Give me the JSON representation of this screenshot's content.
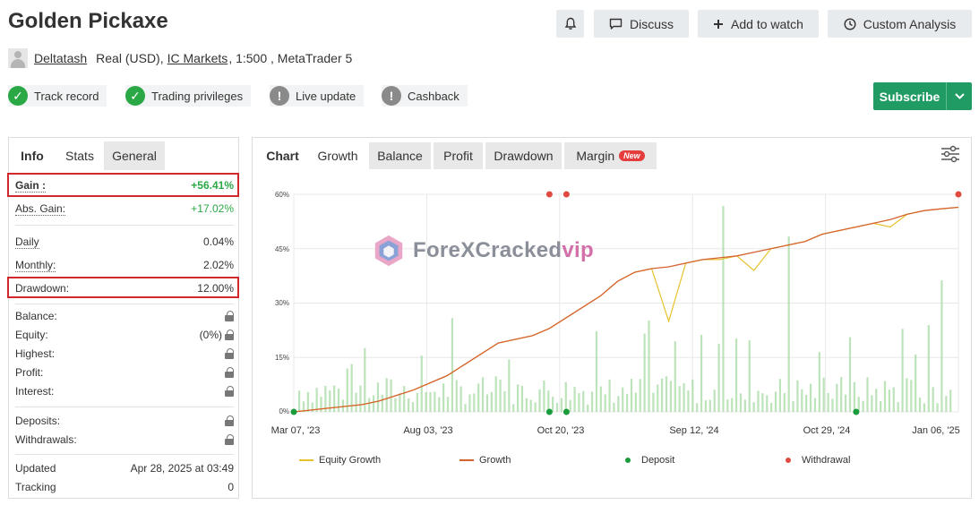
{
  "page": {
    "title": "Golden Pickaxe",
    "buttons": {
      "bell_icon": "bell-icon",
      "discuss": "Discuss",
      "add_watch": "Add to watch",
      "custom_analysis": "Custom Analysis"
    },
    "account": {
      "author": "Deltatash",
      "type": "Real (USD),",
      "broker": "IC Markets",
      "details": ", 1:500 , MetaTrader 5"
    },
    "badges": [
      {
        "label": "Track record",
        "status": "ok"
      },
      {
        "label": "Trading privileges",
        "status": "ok"
      },
      {
        "label": "Live update",
        "status": "na"
      },
      {
        "label": "Cashback",
        "status": "na"
      }
    ],
    "subscribe": "Subscribe"
  },
  "left_panel": {
    "tabs": [
      "Info",
      "Stats",
      "General"
    ],
    "gain": {
      "label": "Gain :",
      "value": "+56.41%"
    },
    "abs_gain": {
      "label": "Abs. Gain:",
      "value": "+17.02%"
    },
    "daily": {
      "label": "Daily",
      "value": "0.04%"
    },
    "monthly": {
      "label": "Monthly:",
      "value": "2.02%"
    },
    "drawdown": {
      "label": "Drawdown:",
      "value": "12.00%"
    },
    "balance": {
      "label": "Balance:"
    },
    "equity": {
      "label": "Equity:",
      "value": "(0%)"
    },
    "highest": {
      "label": "Highest:"
    },
    "profit": {
      "label": "Profit:"
    },
    "interest": {
      "label": "Interest:"
    },
    "deposits": {
      "label": "Deposits:"
    },
    "withdrawals": {
      "label": "Withdrawals:"
    },
    "updated": {
      "label": "Updated",
      "value": "Apr 28, 2025 at 03:49"
    },
    "tracking": {
      "label": "Tracking",
      "value": "0"
    }
  },
  "right_panel": {
    "tabs": {
      "chart": "Chart",
      "growth": "Growth",
      "balance": "Balance",
      "profit": "Profit",
      "drawdown": "Drawdown",
      "margin": "Margin",
      "new_badge": "New"
    }
  },
  "watermark": {
    "main": "ForeXCracked",
    "suffix": "vip"
  },
  "chart_data": {
    "type": "line",
    "y_ticks": [
      "60%",
      "45%",
      "30%",
      "15%",
      "0%"
    ],
    "ylim": [
      0,
      60
    ],
    "x_ticks": [
      "Mar 07, '23",
      "Aug 03, '23",
      "Oct 20, '23",
      "Sep 12, '24",
      "Oct 29, '24",
      "Jan 06, '25"
    ],
    "grid": true,
    "legend_position": "bottom",
    "legend": [
      {
        "name": "Equity Growth",
        "color": "#e6c22e",
        "kind": "line"
      },
      {
        "name": "Growth",
        "color": "#d5622f",
        "kind": "line"
      },
      {
        "name": "Deposit",
        "color": "#1a9c3c",
        "kind": "dot"
      },
      {
        "name": "Withdrawal",
        "color": "#e04a3f",
        "kind": "dot"
      }
    ],
    "series": [
      {
        "name": "Growth",
        "values": [
          0,
          0.5,
          1,
          1.5,
          2,
          3,
          4.5,
          6,
          8,
          10,
          13,
          16,
          19,
          20,
          21,
          23,
          26,
          29,
          32,
          36,
          38.5,
          39.5,
          40,
          41,
          42,
          42.5,
          43,
          44,
          45,
          46,
          47,
          49,
          50,
          51,
          52,
          53,
          54.5,
          55.5,
          56,
          56.41
        ]
      },
      {
        "name": "Equity Growth",
        "values": [
          0,
          0.5,
          1,
          1.5,
          2,
          3,
          4.5,
          6,
          8,
          10,
          13,
          16,
          19,
          20,
          21,
          23,
          26,
          29,
          32,
          36,
          38.5,
          39.5,
          25,
          41,
          42,
          42,
          43,
          39,
          45,
          46,
          47,
          49,
          50,
          51,
          52,
          51,
          54.5,
          55.5,
          56,
          56.41
        ]
      }
    ],
    "deposits_x_index": [
      0,
      15,
      16,
      33
    ],
    "withdrawals_x_index": [
      15,
      16,
      39
    ]
  }
}
